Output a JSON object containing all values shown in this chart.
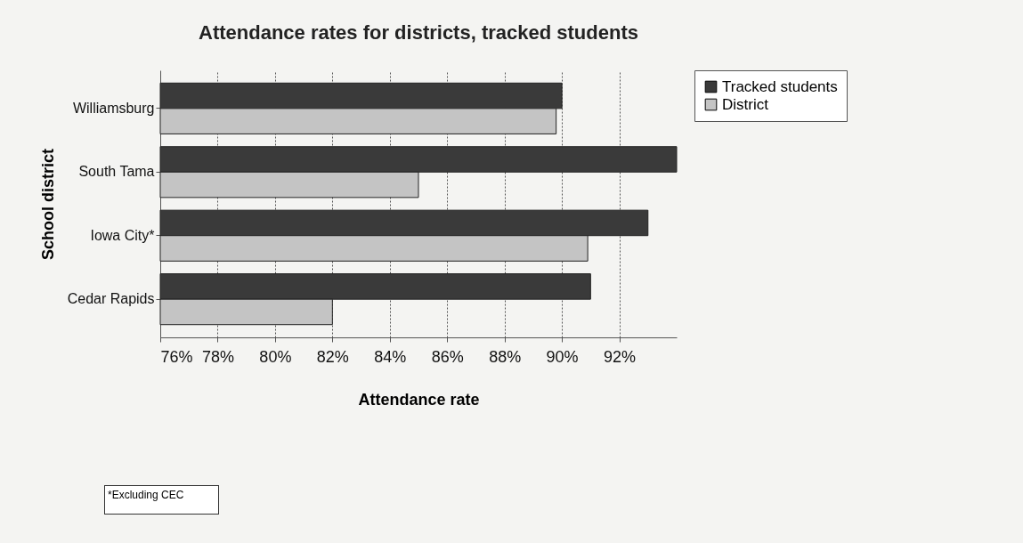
{
  "chart_data": {
    "type": "bar",
    "orientation": "horizontal",
    "title": "Attendance rates for districts, tracked students",
    "xlabel": "Attendance rate",
    "ylabel": "School district",
    "categories": [
      "Williamsburg",
      "South Tama",
      "Iowa City*",
      "Cedar Rapids"
    ],
    "series": [
      {
        "name": "Tracked students",
        "color": "#3a3a3a",
        "values": [
          90.0,
          94.0,
          93.0,
          91.0
        ]
      },
      {
        "name": "District",
        "color": "#c4c4c4",
        "values": [
          89.8,
          85.0,
          90.9,
          82.0
        ]
      }
    ],
    "xlim": [
      76,
      94
    ],
    "xticks": [
      {
        "value": 76,
        "label": "76%"
      },
      {
        "value": 78,
        "label": "78%"
      },
      {
        "value": 80,
        "label": "80%"
      },
      {
        "value": 82,
        "label": "82%"
      },
      {
        "value": 84,
        "label": "84%"
      },
      {
        "value": 86,
        "label": "86%"
      },
      {
        "value": 88,
        "label": "88%"
      },
      {
        "value": 90,
        "label": "90%"
      },
      {
        "value": 92,
        "label": "92%"
      }
    ],
    "grid": "x",
    "legend": "right",
    "annotations": [
      "*Excluding CEC"
    ]
  }
}
